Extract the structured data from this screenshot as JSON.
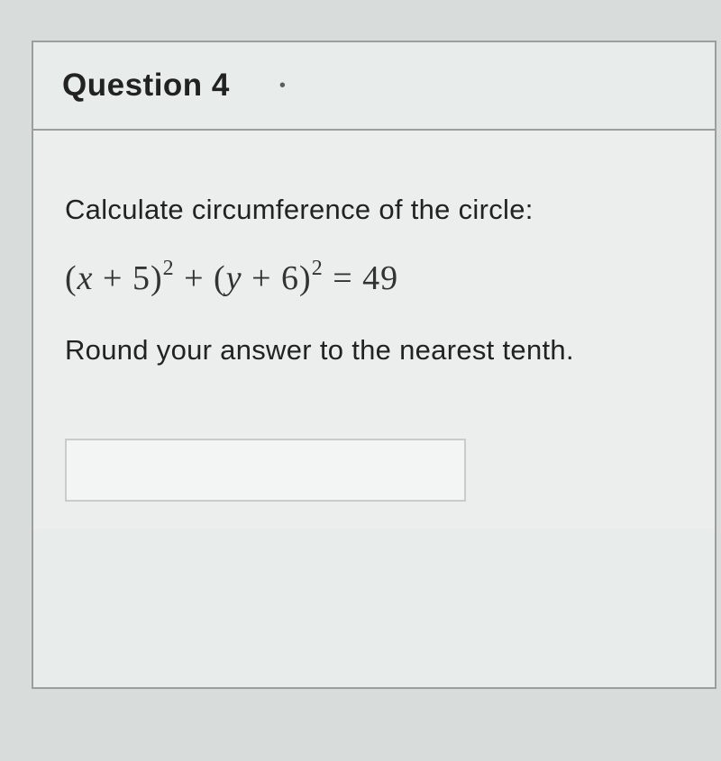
{
  "header": {
    "title": "Question 4",
    "marker": "•"
  },
  "body": {
    "prompt": "Calculate circumference of the circle:",
    "equation": {
      "x_shift": "5",
      "y_shift": "6",
      "rhs": "49"
    },
    "round_note": "Round your answer to the nearest tenth."
  },
  "input": {
    "value": ""
  },
  "colors": {
    "page_bg": "#d8dddc",
    "panel_bg": "#e8ecea",
    "border": "#9a9e9c",
    "text": "#222222",
    "input_border": "#c8ccca",
    "input_bg": "#f2f5f3"
  },
  "typography": {
    "title_fontsize": 35,
    "body_fontsize": 31,
    "equation_fontsize": 38
  }
}
